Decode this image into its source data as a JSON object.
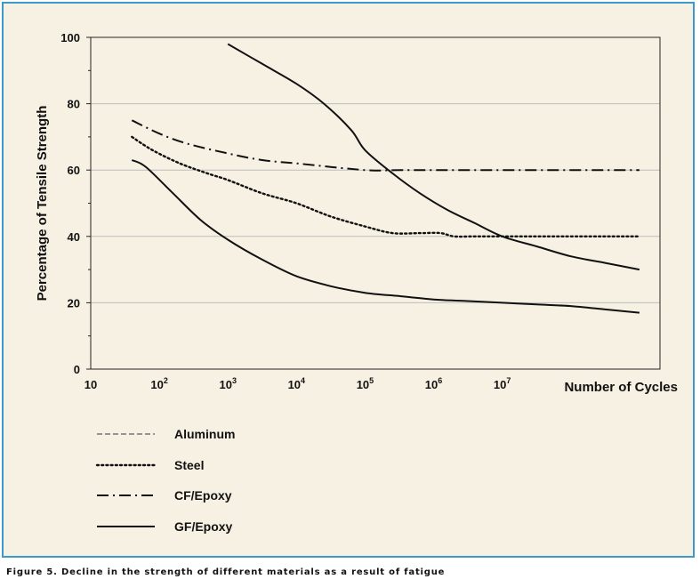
{
  "chart_data": {
    "type": "line",
    "xscale": "log10",
    "xlim": [
      1,
      9.3
    ],
    "ylim": [
      0,
      100
    ],
    "yticks": [
      0,
      20,
      40,
      60,
      80,
      100
    ],
    "xticks": [
      {
        "exp": 1,
        "label": "10"
      },
      {
        "exp": 2,
        "label": "10",
        "sup": "2"
      },
      {
        "exp": 3,
        "label": "10",
        "sup": "3"
      },
      {
        "exp": 4,
        "label": "10",
        "sup": "4"
      },
      {
        "exp": 5,
        "label": "10",
        "sup": "5"
      },
      {
        "exp": 6,
        "label": "10",
        "sup": "6"
      },
      {
        "exp": 7,
        "label": "10",
        "sup": "7"
      }
    ],
    "xlabel": "Number of Cycles",
    "ylabel": "Percentage of Tensile Strength",
    "grid": "horizontal",
    "legend_position": "bottom-left",
    "series": [
      {
        "name": "Aluminum",
        "style": "dashed",
        "color": "#777777",
        "x": [],
        "y": []
      },
      {
        "name": "Steel",
        "style": "dotted",
        "color": "#111111",
        "x": [
          1.6,
          1.9,
          2.3,
          2.7,
          3.0,
          3.5,
          4.0,
          4.5,
          5.0,
          5.4,
          5.8,
          6.1,
          6.3,
          6.6,
          7.0,
          7.5,
          8.0,
          8.6,
          9.0
        ],
        "y": [
          70,
          66,
          62,
          59,
          57,
          53,
          50,
          46,
          43,
          41,
          41,
          41,
          40,
          40,
          40,
          40,
          40,
          40,
          40
        ]
      },
      {
        "name": "CF/Epoxy",
        "style": "dash-dot",
        "color": "#111111",
        "x": [
          1.6,
          2.0,
          2.4,
          3.0,
          3.5,
          4.0,
          5.0,
          5.5,
          6.0,
          6.5,
          7.0,
          7.5,
          8.0,
          8.5,
          9.0
        ],
        "y": [
          75,
          71,
          68,
          65,
          63,
          62,
          60,
          60,
          60,
          60,
          60,
          60,
          60,
          60,
          60
        ]
      },
      {
        "name": "GF/Epoxy",
        "style": "solid",
        "color": "#111111",
        "x": [
          1.6,
          1.8,
          2.2,
          2.6,
          3.0,
          3.5,
          4.0,
          4.5,
          5.0,
          5.5,
          6.0,
          6.5,
          7.0,
          7.5,
          8.0,
          8.5,
          9.0
        ],
        "y": [
          63,
          61,
          53,
          45,
          39,
          33,
          28,
          25,
          23,
          22,
          21,
          20.5,
          20,
          19.5,
          19,
          18,
          17
        ]
      },
      {
        "name": "",
        "legend": false,
        "style": "solid",
        "color": "#111111",
        "x": [
          3.0,
          3.5,
          4.0,
          4.4,
          4.8,
          5.0,
          5.4,
          5.8,
          6.2,
          6.6,
          7.0,
          7.5,
          8.0,
          8.5,
          9.0
        ],
        "y": [
          98,
          92,
          86,
          80,
          72,
          66,
          59,
          53,
          48,
          44,
          40,
          37,
          34,
          32,
          30
        ]
      }
    ]
  },
  "caption": "Figure 5. Decline in the strength of different materials as a result of fatigue"
}
